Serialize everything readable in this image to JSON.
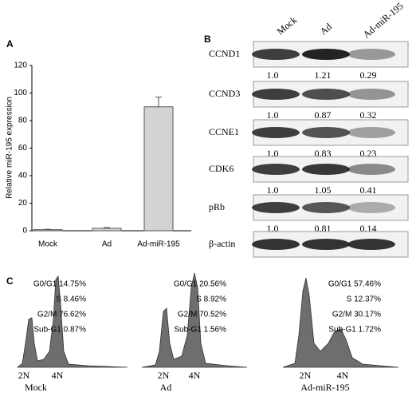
{
  "panel_labels": [
    "A",
    "B",
    "C"
  ],
  "chart_data": {
    "type": "bar",
    "ylabel": "Relative miR-195 expression",
    "categories": [
      "Mock",
      "Ad",
      "Ad-miR-195"
    ],
    "values": [
      0.8,
      1.8,
      90
    ],
    "errors": [
      0.3,
      0.5,
      7
    ],
    "color": "#d3d3d3",
    "ylim": [
      0,
      120
    ],
    "yticks": [
      0,
      20,
      40,
      60,
      80,
      100,
      120
    ]
  },
  "blot": {
    "lanes": [
      "Mock",
      "Ad",
      "Ad-miR-195"
    ],
    "rows": [
      {
        "name": "CCND1",
        "values": [
          "1.0",
          "1.21",
          "0.29"
        ]
      },
      {
        "name": "CCND3",
        "values": [
          "1.0",
          "0.87",
          "0.32"
        ]
      },
      {
        "name": "CCNE1",
        "values": [
          "1.0",
          "0.83",
          "0.23"
        ]
      },
      {
        "name": "CDK6",
        "values": [
          "1.0",
          "1.05",
          "0.41"
        ]
      },
      {
        "name": "pRb",
        "values": [
          "1.0",
          "0.81",
          "0.14"
        ]
      },
      {
        "name": "β-actin"
      }
    ]
  },
  "flow": {
    "panels": [
      {
        "name": "Mock",
        "lines": [
          "G0/G1 14.75%",
          "S 8.46%",
          "G2/M 76.62%",
          "Sub-G1 0.87%"
        ],
        "peaks": [
          "2N",
          "4N"
        ]
      },
      {
        "name": "Ad",
        "lines": [
          "G0/G1 20.56%",
          "S 8.92%",
          "G2/M 70.52%",
          "Sub-G1 1.56%"
        ],
        "peaks": [
          "2N",
          "4N"
        ]
      },
      {
        "name": "Ad-miR-195",
        "lines": [
          "G0/G1 57.46%",
          "S 12.37%",
          "G2/M 30.17%",
          "Sub-G1 1.72%"
        ],
        "peaks": [
          "2N",
          "4N"
        ]
      }
    ]
  }
}
